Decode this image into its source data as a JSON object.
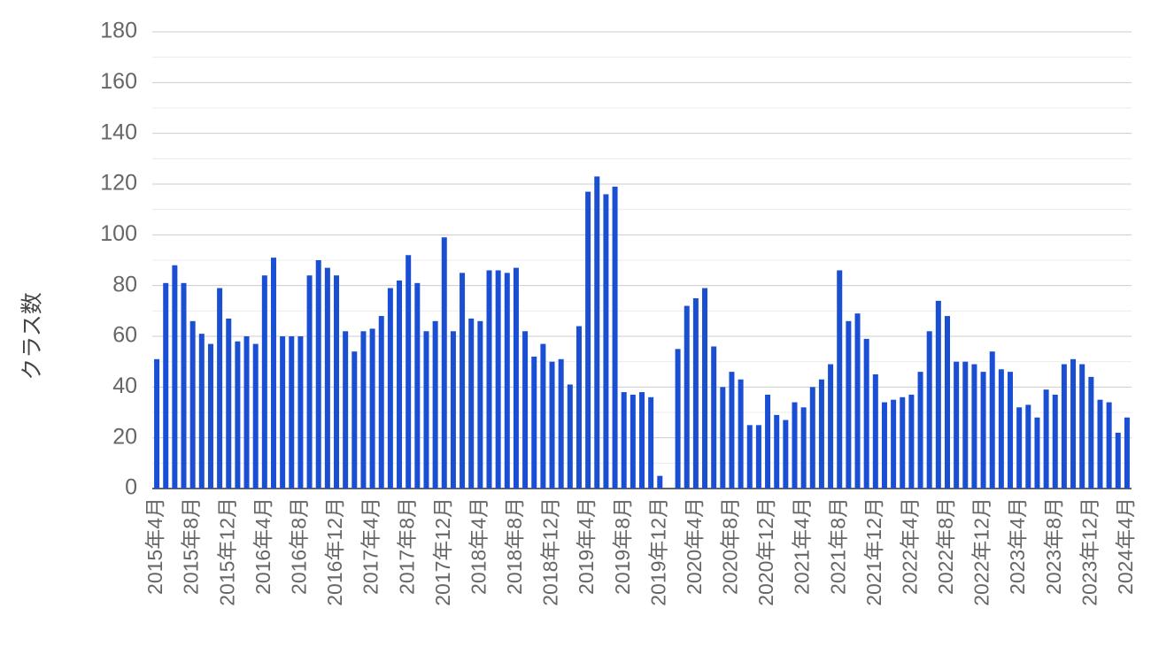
{
  "chart_data": {
    "type": "bar",
    "y_title": "クラス数",
    "color": "#1a4fd3",
    "grid": true,
    "minor_grid": true,
    "categories": [
      "2015年4月",
      null,
      null,
      null,
      "2015年8月",
      null,
      null,
      null,
      "2015年12月",
      null,
      null,
      null,
      "2016年4月",
      null,
      null,
      null,
      "2016年8月",
      null,
      null,
      null,
      "2016年12月",
      null,
      null,
      null,
      "2017年4月",
      null,
      null,
      null,
      "2017年8月",
      null,
      null,
      null,
      "2017年12月",
      null,
      null,
      null,
      "2018年4月",
      null,
      null,
      null,
      "2018年8月",
      null,
      null,
      null,
      "2018年12月",
      null,
      null,
      null,
      "2019年4月",
      null,
      null,
      null,
      "2019年8月",
      null,
      null,
      null,
      "2019年12月",
      null,
      null,
      null,
      "2020年4月",
      null,
      null,
      null,
      "2020年8月",
      null,
      null,
      null,
      "2020年12月",
      null,
      null,
      null,
      "2021年4月",
      null,
      null,
      null,
      "2021年8月",
      null,
      null,
      null,
      "2021年12月",
      null,
      null,
      null,
      "2022年4月",
      null,
      null,
      null,
      "2022年8月",
      null,
      null,
      null,
      "2022年12月",
      null,
      null,
      null,
      "2023年4月",
      null,
      null,
      null,
      "2023年8月",
      null,
      null,
      null,
      "2023年12月",
      null,
      null,
      null,
      "2024年4月"
    ],
    "values": [
      51,
      81,
      88,
      81,
      66,
      61,
      57,
      79,
      67,
      58,
      60,
      57,
      84,
      91,
      60,
      60,
      60,
      84,
      90,
      87,
      84,
      62,
      54,
      62,
      63,
      68,
      79,
      82,
      92,
      81,
      62,
      66,
      99,
      62,
      85,
      67,
      66,
      86,
      86,
      85,
      87,
      62,
      52,
      57,
      50,
      51,
      41,
      64,
      117,
      123,
      116,
      119,
      38,
      37,
      38,
      36,
      5,
      null,
      55,
      72,
      75,
      79,
      56,
      40,
      46,
      43,
      25,
      25,
      37,
      29,
      27,
      34,
      32,
      40,
      43,
      49,
      86,
      66,
      69,
      59,
      45,
      34,
      35,
      36,
      37,
      46,
      62,
      74,
      68,
      50,
      50,
      49,
      46,
      54,
      47,
      46,
      32,
      33,
      28,
      39,
      37,
      49,
      51,
      49,
      44,
      35,
      34,
      22,
      28
    ],
    "ylim": [
      0,
      180
    ],
    "yticks": [
      0,
      20,
      40,
      60,
      80,
      100,
      120,
      140,
      160,
      180
    ]
  }
}
